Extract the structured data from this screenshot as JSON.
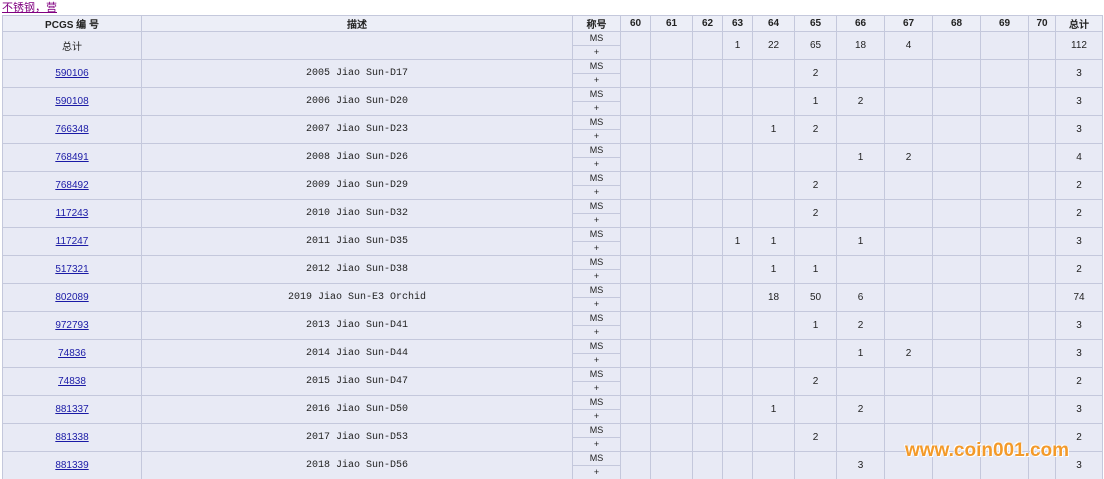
{
  "top_link": "不锈钢，营",
  "table": {
    "header": [
      "PCGS 编 号",
      "描述",
      "称号",
      "60",
      "61",
      "62",
      "63",
      "64",
      "65",
      "66",
      "67",
      "68",
      "69",
      "70",
      "总计"
    ],
    "rows": [
      {
        "pcgs": "总计",
        "description": null,
        "designation": [
          "MS",
          "+"
        ],
        "counts": [
          null,
          null,
          null,
          1,
          22,
          65,
          18,
          4,
          null,
          null,
          null
        ],
        "total": 112
      },
      {
        "pcgs": "590106",
        "description": "2005 Jiao Sun-D17",
        "designation": [
          "MS",
          "+"
        ],
        "counts": [
          null,
          null,
          null,
          null,
          null,
          2,
          null,
          null,
          null,
          null,
          null
        ],
        "total": 3
      },
      {
        "pcgs": "590108",
        "description": "2006 Jiao Sun-D20",
        "designation": [
          "MS",
          "+"
        ],
        "counts": [
          null,
          null,
          null,
          null,
          null,
          1,
          2,
          null,
          null,
          null,
          null
        ],
        "total": 3
      },
      {
        "pcgs": "766348",
        "description": "2007 Jiao Sun-D23",
        "designation": [
          "MS",
          "+"
        ],
        "counts": [
          null,
          null,
          null,
          null,
          1,
          2,
          null,
          null,
          null,
          null,
          null
        ],
        "total": 3
      },
      {
        "pcgs": "768491",
        "description": "2008 Jiao Sun-D26",
        "designation": [
          "MS",
          "+"
        ],
        "counts": [
          null,
          null,
          null,
          null,
          null,
          null,
          1,
          2,
          null,
          null,
          null
        ],
        "total": 4
      },
      {
        "pcgs": "768492",
        "description": "2009 Jiao Sun-D29",
        "designation": [
          "MS",
          "+"
        ],
        "counts": [
          null,
          null,
          null,
          null,
          null,
          2,
          null,
          null,
          null,
          null,
          null
        ],
        "total": 2
      },
      {
        "pcgs": "117243",
        "description": "2010 Jiao Sun-D32",
        "designation": [
          "MS",
          "+"
        ],
        "counts": [
          null,
          null,
          null,
          null,
          null,
          2,
          null,
          null,
          null,
          null,
          null
        ],
        "total": 2
      },
      {
        "pcgs": "117247",
        "description": "2011 Jiao Sun-D35",
        "designation": [
          "MS",
          "+"
        ],
        "counts": [
          null,
          null,
          null,
          1,
          1,
          null,
          1,
          null,
          null,
          null,
          null
        ],
        "total": 3
      },
      {
        "pcgs": "517321",
        "description": "2012 Jiao Sun-D38",
        "designation": [
          "MS",
          "+"
        ],
        "counts": [
          null,
          null,
          null,
          null,
          1,
          1,
          null,
          null,
          null,
          null,
          null
        ],
        "total": 2
      },
      {
        "pcgs": "802089",
        "description": "2019 Jiao Sun-E3 Orchid",
        "designation": [
          "MS",
          "+"
        ],
        "counts": [
          null,
          null,
          null,
          null,
          18,
          50,
          6,
          null,
          null,
          null,
          null
        ],
        "total": 74
      },
      {
        "pcgs": "972793",
        "description": "2013 Jiao Sun-D41",
        "designation": [
          "MS",
          "+"
        ],
        "counts": [
          null,
          null,
          null,
          null,
          null,
          1,
          2,
          null,
          null,
          null,
          null
        ],
        "total": 3
      },
      {
        "pcgs": "74836",
        "description": "2014 Jiao Sun-D44",
        "designation": [
          "MS",
          "+"
        ],
        "counts": [
          null,
          null,
          null,
          null,
          null,
          null,
          1,
          2,
          null,
          null,
          null
        ],
        "total": 3
      },
      {
        "pcgs": "74838",
        "description": "2015 Jiao Sun-D47",
        "designation": [
          "MS",
          "+"
        ],
        "counts": [
          null,
          null,
          null,
          null,
          null,
          2,
          null,
          null,
          null,
          null,
          null
        ],
        "total": 2
      },
      {
        "pcgs": "881337",
        "description": "2016 Jiao Sun-D50",
        "designation": [
          "MS",
          "+"
        ],
        "counts": [
          null,
          null,
          null,
          null,
          1,
          null,
          2,
          null,
          null,
          null,
          null
        ],
        "total": 3
      },
      {
        "pcgs": "881338",
        "description": "2017 Jiao Sun-D53",
        "designation": [
          "MS",
          "+"
        ],
        "counts": [
          null,
          null,
          null,
          null,
          null,
          2,
          null,
          null,
          null,
          null,
          null
        ],
        "total": 2
      },
      {
        "pcgs": "881339",
        "description": "2018 Jiao Sun-D56",
        "designation": [
          "MS",
          "+"
        ],
        "counts": [
          null,
          null,
          null,
          null,
          null,
          null,
          3,
          null,
          null,
          null,
          null
        ],
        "total": 3
      }
    ]
  },
  "watermark": "www.coin001.com"
}
